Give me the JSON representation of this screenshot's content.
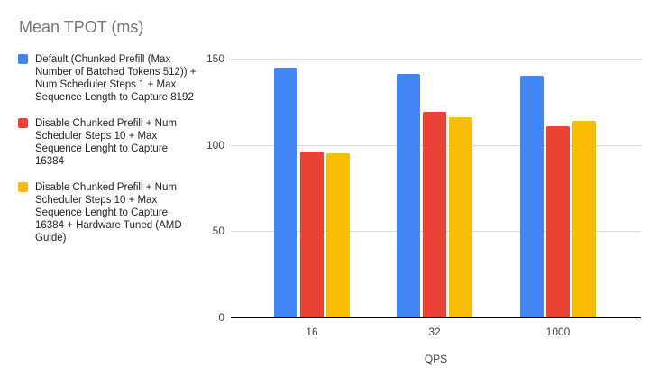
{
  "chart_data": {
    "type": "bar",
    "title": "Mean TPOT (ms)",
    "categories": [
      "16",
      "32",
      "1000"
    ],
    "series": [
      {
        "name": "Default (Chunked Prefill (Max Number of Batched Tokens 512)) + Num Scheduler Steps 1 + Max Sequence Length to Capture 8192",
        "color": "#4285F4",
        "values": [
          145,
          141,
          140
        ]
      },
      {
        "name": "Disable Chunked Prefill + Num Scheduler Steps 10 + Max Sequence Lenght to Capture 16384",
        "color": "#EA4335",
        "values": [
          96,
          119,
          111
        ]
      },
      {
        "name": "Disable Chunked Prefill + Num Scheduler Steps 10 + Max Sequence Lenght to Capture 16384 + Hardware Tuned (AMD Guide)",
        "color": "#FBBC04",
        "values": [
          95,
          116,
          114
        ]
      }
    ],
    "xlabel": "QPS",
    "ylabel": "",
    "ylim": [
      0,
      150
    ],
    "yticks": [
      0,
      50,
      100,
      150
    ],
    "legend_position": "left",
    "grid": true
  },
  "colors": {
    "background": "#FFFFFF",
    "title_text": "#757575",
    "axis_label_text": "#444444",
    "legend_text": "#212121",
    "gridline": "#D9D9D9",
    "axis_line": "#000000"
  }
}
